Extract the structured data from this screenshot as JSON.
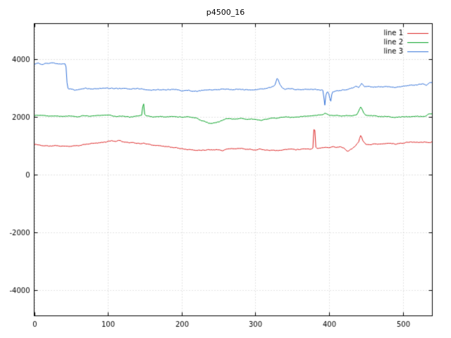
{
  "chart_data": {
    "type": "line",
    "title": "p4500_16",
    "xlabel": "",
    "ylabel": "",
    "xlim": [
      0,
      540
    ],
    "ylim": [
      -4880,
      5240
    ],
    "xticks": [
      0,
      100,
      200,
      300,
      400,
      500
    ],
    "yticks": [
      -4000,
      -2000,
      0,
      2000,
      4000
    ],
    "grid": true,
    "legend_position": "top-right",
    "colors": {
      "background": "#ffffff",
      "border": "#000000",
      "grid": "#c4c4c4",
      "text": "#000000"
    },
    "series": [
      {
        "name": "line 1",
        "color": "#dc2020",
        "noise": 26,
        "seed": 11,
        "points": [
          [
            0,
            1060
          ],
          [
            10,
            1020
          ],
          [
            20,
            1000
          ],
          [
            30,
            1010
          ],
          [
            40,
            990
          ],
          [
            50,
            1000
          ],
          [
            60,
            1030
          ],
          [
            70,
            1060
          ],
          [
            80,
            1090
          ],
          [
            90,
            1110
          ],
          [
            100,
            1150
          ],
          [
            106,
            1190
          ],
          [
            110,
            1160
          ],
          [
            115,
            1200
          ],
          [
            120,
            1150
          ],
          [
            130,
            1130
          ],
          [
            140,
            1100
          ],
          [
            150,
            1080
          ],
          [
            160,
            1050
          ],
          [
            170,
            1020
          ],
          [
            180,
            990
          ],
          [
            190,
            950
          ],
          [
            200,
            900
          ],
          [
            210,
            880
          ],
          [
            220,
            860
          ],
          [
            230,
            870
          ],
          [
            240,
            880
          ],
          [
            250,
            900
          ],
          [
            255,
            860
          ],
          [
            260,
            900
          ],
          [
            270,
            920
          ],
          [
            280,
            930
          ],
          [
            290,
            910
          ],
          [
            300,
            880
          ],
          [
            305,
            930
          ],
          [
            310,
            890
          ],
          [
            320,
            870
          ],
          [
            330,
            850
          ],
          [
            340,
            880
          ],
          [
            350,
            900
          ],
          [
            355,
            870
          ],
          [
            360,
            900
          ],
          [
            370,
            920
          ],
          [
            375,
            900
          ],
          [
            378,
            940
          ],
          [
            380,
            1890
          ],
          [
            382,
            960
          ],
          [
            385,
            930
          ],
          [
            390,
            950
          ],
          [
            395,
            970
          ],
          [
            400,
            960
          ],
          [
            405,
            980
          ],
          [
            410,
            950
          ],
          [
            415,
            990
          ],
          [
            420,
            930
          ],
          [
            425,
            820
          ],
          [
            430,
            900
          ],
          [
            435,
            1000
          ],
          [
            440,
            1150
          ],
          [
            443,
            1400
          ],
          [
            446,
            1180
          ],
          [
            450,
            1060
          ],
          [
            455,
            1040
          ],
          [
            460,
            1080
          ],
          [
            470,
            1060
          ],
          [
            480,
            1090
          ],
          [
            490,
            1070
          ],
          [
            500,
            1100
          ],
          [
            510,
            1130
          ],
          [
            520,
            1110
          ],
          [
            530,
            1140
          ],
          [
            536,
            1120
          ],
          [
            540,
            1160
          ]
        ]
      },
      {
        "name": "line 2",
        "color": "#00a020",
        "noise": 28,
        "seed": 22,
        "points": [
          [
            0,
            2060
          ],
          [
            10,
            2080
          ],
          [
            20,
            2050
          ],
          [
            30,
            2070
          ],
          [
            40,
            2040
          ],
          [
            50,
            2060
          ],
          [
            60,
            2030
          ],
          [
            70,
            2060
          ],
          [
            80,
            2040
          ],
          [
            90,
            2050
          ],
          [
            100,
            2060
          ],
          [
            110,
            2030
          ],
          [
            120,
            2050
          ],
          [
            130,
            2020
          ],
          [
            140,
            2040
          ],
          [
            146,
            2060
          ],
          [
            148,
            2580
          ],
          [
            150,
            2060
          ],
          [
            160,
            2020
          ],
          [
            170,
            2040
          ],
          [
            180,
            2010
          ],
          [
            190,
            2030
          ],
          [
            200,
            2000
          ],
          [
            210,
            1990
          ],
          [
            220,
            1960
          ],
          [
            228,
            1860
          ],
          [
            235,
            1800
          ],
          [
            240,
            1770
          ],
          [
            245,
            1820
          ],
          [
            250,
            1860
          ],
          [
            255,
            1900
          ],
          [
            260,
            1940
          ],
          [
            270,
            1950
          ],
          [
            280,
            1960
          ],
          [
            290,
            1930
          ],
          [
            300,
            1950
          ],
          [
            308,
            1900
          ],
          [
            312,
            1940
          ],
          [
            320,
            1970
          ],
          [
            330,
            1990
          ],
          [
            340,
            2000
          ],
          [
            350,
            1980
          ],
          [
            360,
            2010
          ],
          [
            370,
            2030
          ],
          [
            380,
            2040
          ],
          [
            390,
            2060
          ],
          [
            395,
            2130
          ],
          [
            400,
            2060
          ],
          [
            410,
            2040
          ],
          [
            420,
            2050
          ],
          [
            430,
            2040
          ],
          [
            438,
            2080
          ],
          [
            443,
            2360
          ],
          [
            447,
            2120
          ],
          [
            450,
            2060
          ],
          [
            460,
            2040
          ],
          [
            470,
            2020
          ],
          [
            480,
            2040
          ],
          [
            490,
            2010
          ],
          [
            500,
            2030
          ],
          [
            510,
            2000
          ],
          [
            520,
            2020
          ],
          [
            530,
            2000
          ],
          [
            536,
            2120
          ],
          [
            540,
            2080
          ]
        ]
      },
      {
        "name": "line 3",
        "color": "#3070d8",
        "noise": 30,
        "seed": 33,
        "points": [
          [
            0,
            3830
          ],
          [
            5,
            3870
          ],
          [
            10,
            3820
          ],
          [
            15,
            3860
          ],
          [
            20,
            3840
          ],
          [
            25,
            3880
          ],
          [
            30,
            3830
          ],
          [
            35,
            3850
          ],
          [
            40,
            3840
          ],
          [
            43,
            3820
          ],
          [
            45,
            3000
          ],
          [
            50,
            2960
          ],
          [
            55,
            2930
          ],
          [
            60,
            2960
          ],
          [
            70,
            2990
          ],
          [
            80,
            2970
          ],
          [
            90,
            3000
          ],
          [
            100,
            3010
          ],
          [
            110,
            2990
          ],
          [
            120,
            3000
          ],
          [
            130,
            2970
          ],
          [
            140,
            2990
          ],
          [
            150,
            2960
          ],
          [
            160,
            2940
          ],
          [
            170,
            2950
          ],
          [
            180,
            2930
          ],
          [
            190,
            2940
          ],
          [
            200,
            2900
          ],
          [
            210,
            2920
          ],
          [
            220,
            2900
          ],
          [
            230,
            2940
          ],
          [
            240,
            2950
          ],
          [
            250,
            2960
          ],
          [
            260,
            2950
          ],
          [
            270,
            2930
          ],
          [
            280,
            2950
          ],
          [
            290,
            2920
          ],
          [
            300,
            2940
          ],
          [
            310,
            2950
          ],
          [
            320,
            3000
          ],
          [
            326,
            3080
          ],
          [
            330,
            3380
          ],
          [
            333,
            3120
          ],
          [
            336,
            3020
          ],
          [
            340,
            2960
          ],
          [
            350,
            2980
          ],
          [
            360,
            2950
          ],
          [
            370,
            2960
          ],
          [
            380,
            2970
          ],
          [
            388,
            2940
          ],
          [
            392,
            2920
          ],
          [
            394,
            2380
          ],
          [
            396,
            2850
          ],
          [
            399,
            2900
          ],
          [
            402,
            2520
          ],
          [
            404,
            2880
          ],
          [
            410,
            2920
          ],
          [
            420,
            2950
          ],
          [
            430,
            3000
          ],
          [
            436,
            3060
          ],
          [
            440,
            3020
          ],
          [
            444,
            3140
          ],
          [
            448,
            3040
          ],
          [
            455,
            3050
          ],
          [
            460,
            3030
          ],
          [
            470,
            3040
          ],
          [
            480,
            3050
          ],
          [
            490,
            3030
          ],
          [
            500,
            3060
          ],
          [
            510,
            3080
          ],
          [
            520,
            3100
          ],
          [
            528,
            3160
          ],
          [
            532,
            3090
          ],
          [
            536,
            3180
          ],
          [
            540,
            3200
          ]
        ]
      }
    ]
  }
}
